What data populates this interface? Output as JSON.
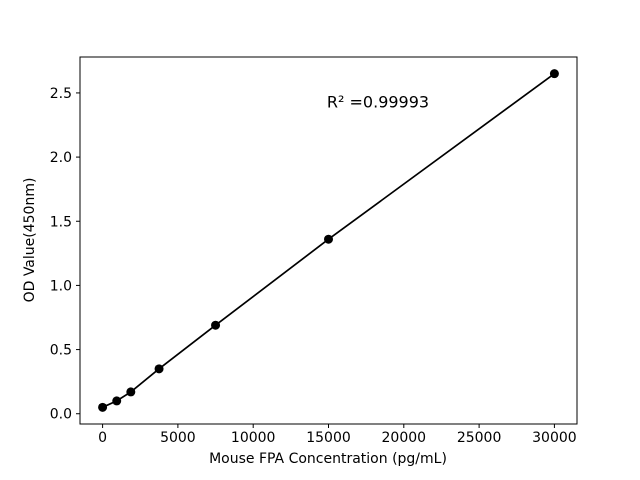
{
  "figure": {
    "background_color": "#ffffff",
    "foreground_color": "#000000"
  },
  "chart_data": {
    "type": "scatter",
    "title": "",
    "xlabel": "Mouse FPA Concentration (pg/mL)",
    "ylabel": "OD Value(450nm)",
    "x": [
      0,
      938,
      1875,
      3750,
      7500,
      15000,
      30000
    ],
    "y": [
      0.05,
      0.1,
      0.17,
      0.35,
      0.69,
      1.36,
      2.65
    ],
    "line_through_points": true,
    "x_ticks": [
      0,
      5000,
      10000,
      15000,
      20000,
      25000,
      30000
    ],
    "x_tick_labels": [
      "0",
      "5000",
      "10000",
      "15000",
      "20000",
      "25000",
      "30000"
    ],
    "y_ticks": [
      0.0,
      0.5,
      1.0,
      1.5,
      2.0,
      2.5
    ],
    "y_tick_labels": [
      "0.0",
      "0.5",
      "1.0",
      "1.5",
      "2.0",
      "2.5"
    ],
    "xlim": [
      -1500,
      31500
    ],
    "ylim": [
      -0.08,
      2.78
    ],
    "grid": false,
    "legend": null,
    "marker_color": "#000000",
    "line_color": "#000000",
    "annotation": {
      "text": "R² =0.99993"
    }
  }
}
